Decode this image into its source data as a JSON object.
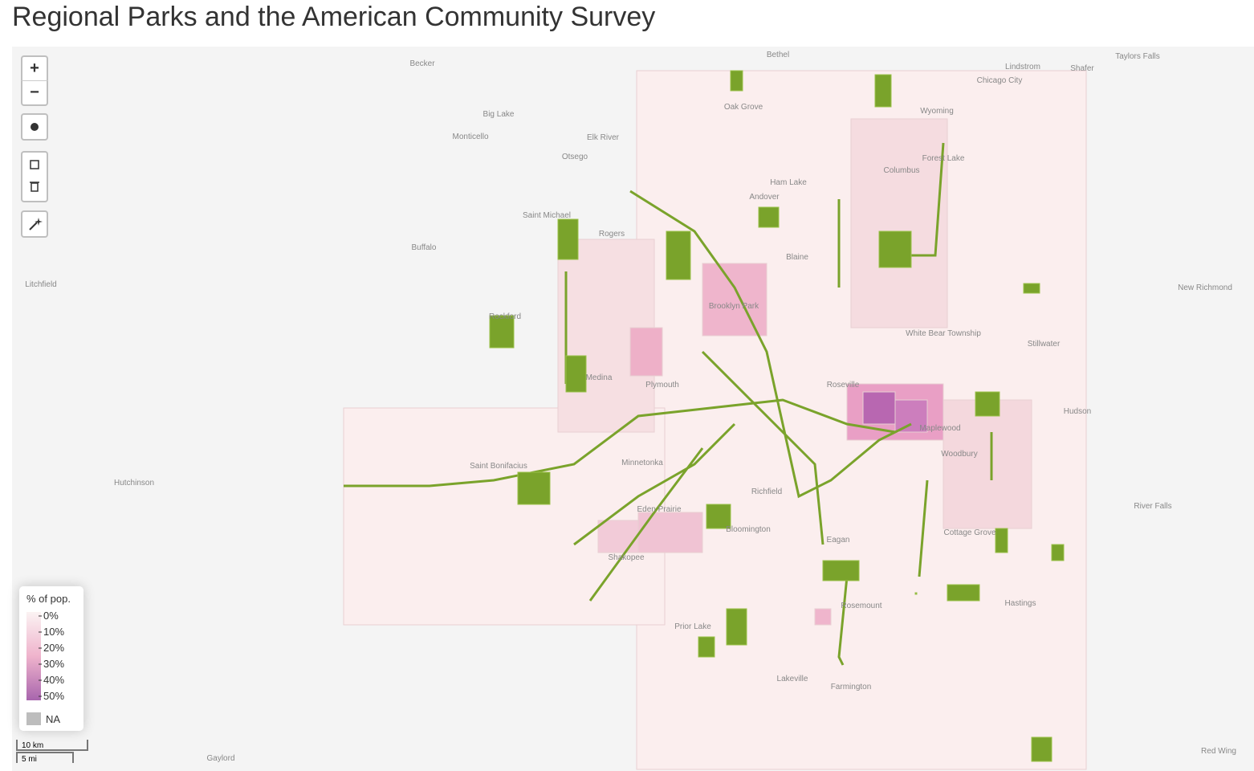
{
  "header": {
    "title": "Regional Parks and the American Community Survey"
  },
  "controls": {
    "zoom_in": "+",
    "zoom_out": "−"
  },
  "places": [
    "Becker",
    "Bethel",
    "Lindstrom",
    "Shafer",
    "Taylors Falls",
    "Chicago City",
    "Big Lake",
    "Oak Grove",
    "Wyoming",
    "Monticello",
    "Elk River",
    "Otsego",
    "Forest Lake",
    "Columbus",
    "Ham Lake",
    "Andover",
    "Saint Michael",
    "Rogers",
    "Buffalo",
    "Blaine",
    "Litchfield",
    "New Richmond",
    "Brooklyn Park",
    "Rockford",
    "White Bear Township",
    "Stillwater",
    "Medina",
    "Plymouth",
    "Roseville",
    "Hudson",
    "Maplewood",
    "Woodbury",
    "Saint Bonifacius",
    "Minnetonka",
    "Hutchinson",
    "Richfield",
    "Eden Prairie",
    "Bloomington",
    "River Falls",
    "Cottage Grove",
    "Eagan",
    "Shakopee",
    "Hastings",
    "Rosemount",
    "Prior Lake",
    "Lakeville",
    "Farmington",
    "Gaylord",
    "Red Wing"
  ],
  "legend": {
    "title": "% of pop.",
    "ticks": [
      {
        "value": 0,
        "label": "0%"
      },
      {
        "value": 10,
        "label": "10%"
      },
      {
        "value": 20,
        "label": "20%"
      },
      {
        "value": 30,
        "label": "30%"
      },
      {
        "value": 40,
        "label": "40%"
      },
      {
        "value": 50,
        "label": "50%"
      }
    ],
    "na_label": "NA"
  },
  "scale": {
    "metric": "10 km",
    "imperial": "5 mi"
  }
}
